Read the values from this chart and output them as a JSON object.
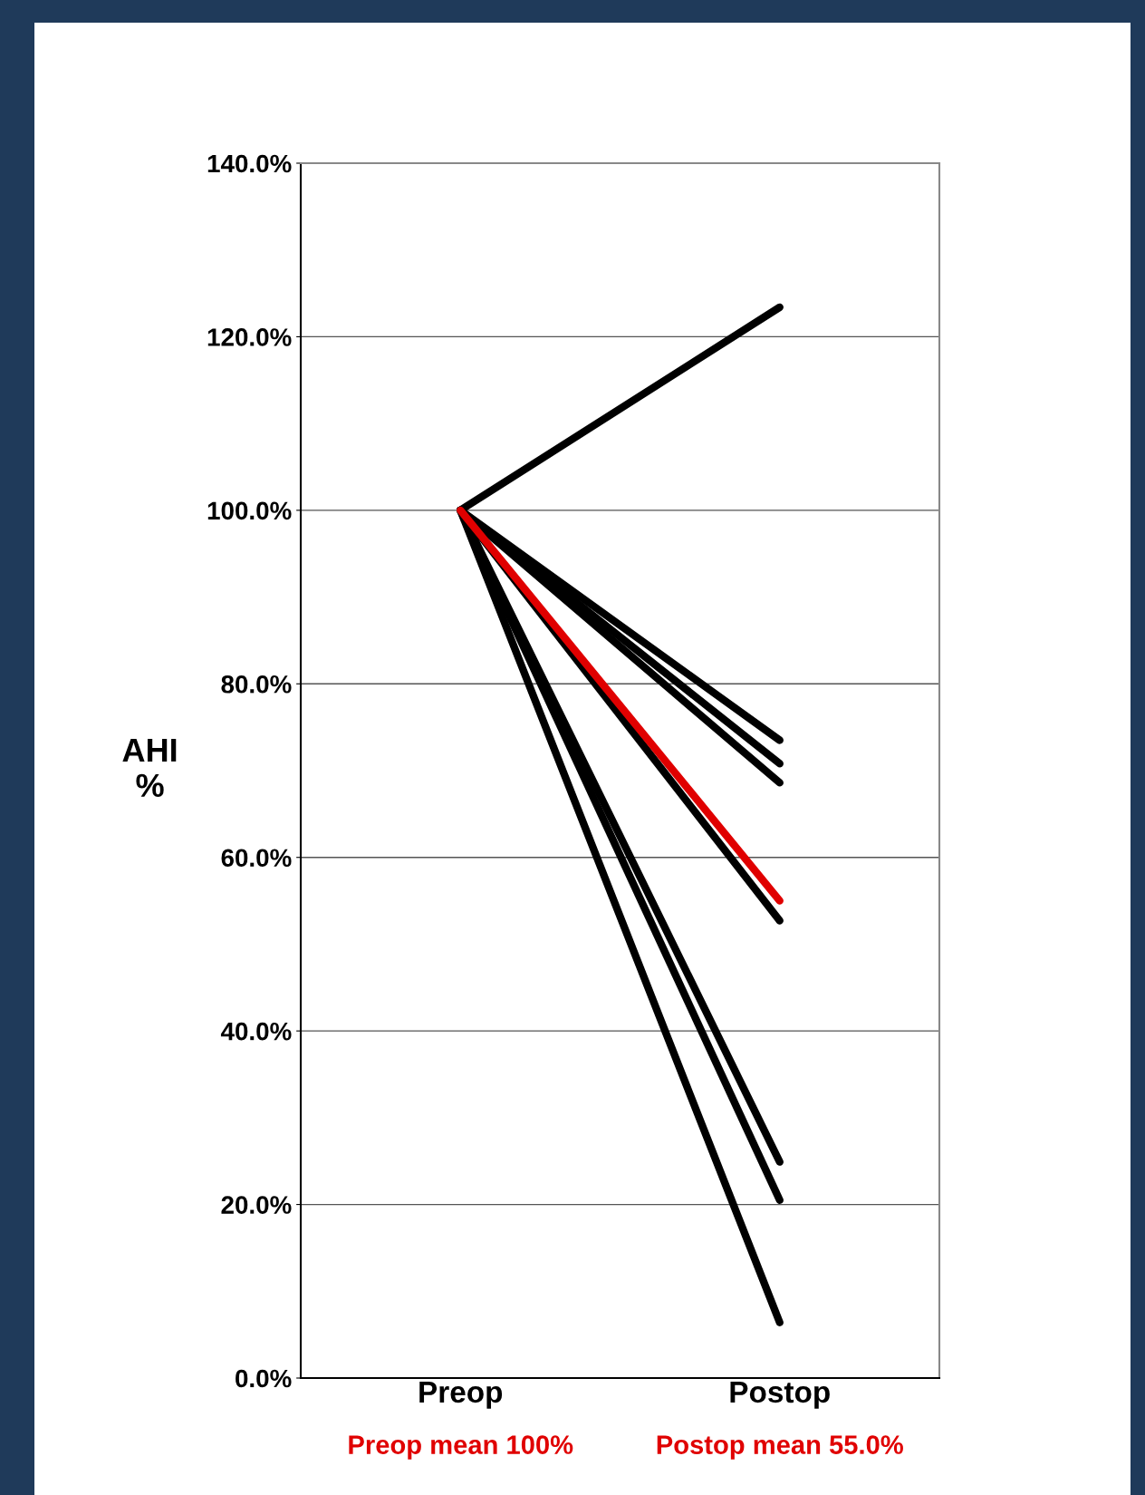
{
  "chart_data": {
    "type": "line",
    "ylabel": "AHI\n%",
    "categories": [
      "Preop",
      "Postop"
    ],
    "series": [
      {
        "color": "#000000",
        "values": [
          100,
          123.4
        ]
      },
      {
        "color": "#000000",
        "values": [
          100,
          73.5
        ]
      },
      {
        "color": "#000000",
        "values": [
          100,
          70.8
        ]
      },
      {
        "color": "#000000",
        "values": [
          100,
          68.6
        ]
      },
      {
        "color": "#000000",
        "values": [
          100,
          52.7
        ]
      },
      {
        "color": "#000000",
        "values": [
          100,
          24.9
        ]
      },
      {
        "color": "#000000",
        "values": [
          100,
          20.5
        ]
      },
      {
        "color": "#000000",
        "values": [
          100,
          6.4
        ]
      },
      {
        "color": "#e00000",
        "values": [
          100,
          55.0
        ]
      }
    ],
    "ylim": [
      0,
      140
    ],
    "yticks": [
      {
        "value": 0,
        "label": "0.0%"
      },
      {
        "value": 20,
        "label": "20.0%"
      },
      {
        "value": 40,
        "label": "40.0%"
      },
      {
        "value": 60,
        "label": "60.0%"
      },
      {
        "value": 80,
        "label": "80.0%"
      },
      {
        "value": 100,
        "label": "100.0%"
      },
      {
        "value": 120,
        "label": "120.0%"
      },
      {
        "value": 140,
        "label": "140.0%"
      }
    ],
    "grid": "y",
    "marker": "none",
    "line_style": "solid",
    "legend": false,
    "annotations": [
      "Preop mean 100%",
      "Postop mean 55.0%"
    ]
  }
}
